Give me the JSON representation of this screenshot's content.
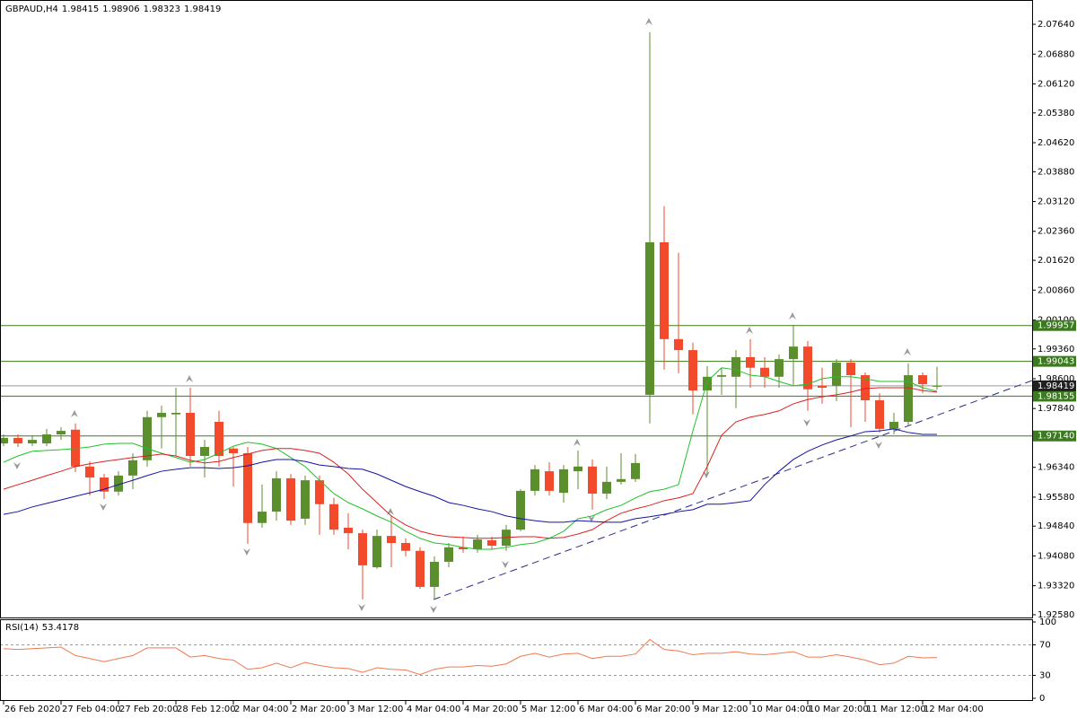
{
  "chart_data": [
    {
      "type": "candlestick",
      "title": "GBPAUD,H4",
      "categories": [
        "26 Feb 2020",
        null,
        null,
        null,
        "27 Feb 04:00",
        null,
        null,
        null,
        "27 Feb 20:00",
        null,
        null,
        null,
        "28 Feb 12:00",
        null,
        null,
        null,
        "2 Mar 04:00",
        null,
        null,
        null,
        "2 Mar 20:00",
        null,
        null,
        null,
        "3 Mar 12:00",
        null,
        null,
        null,
        "4 Mar 04:00",
        null,
        null,
        null,
        "4 Mar 20:00",
        null,
        null,
        null,
        "5 Mar 12:00",
        null,
        null,
        null,
        "6 Mar 04:00",
        null,
        null,
        null,
        "6 Mar 20:00",
        null,
        null,
        null,
        "9 Mar 12:00",
        null,
        null,
        null,
        "10 Mar 04:00",
        null,
        null,
        null,
        "10 Mar 20:00",
        null,
        null,
        null,
        "11 Mar 12:00",
        null,
        null,
        null,
        "12 Mar 04:00",
        null
      ],
      "open": [
        1.9695,
        1.9709,
        1.9695,
        1.9695,
        1.9718,
        1.973,
        1.9636,
        1.9608,
        1.9572,
        1.9613,
        1.9652,
        1.9762,
        1.9769,
        1.9773,
        1.9663,
        1.975,
        1.9682,
        1.967,
        1.9492,
        1.9521,
        1.9606,
        1.9503,
        1.9601,
        1.954,
        1.948,
        1.9466,
        1.9379,
        1.9459,
        1.9441,
        1.9421,
        1.9329,
        1.9393,
        1.943,
        1.9425,
        1.9448,
        1.9434,
        1.9475,
        1.9574,
        1.9624,
        1.9569,
        1.9624,
        1.9636,
        1.9567,
        1.9597,
        1.9604,
        1.9819,
        2.0208,
        1.9961,
        1.9933,
        1.983,
        1.9865,
        1.9865,
        1.9915,
        1.9888,
        1.9865,
        1.991,
        1.9942,
        1.9842,
        1.9842,
        1.9901,
        1.9869,
        1.9805,
        1.9732,
        1.975,
        1.9869,
        1.98415
      ],
      "high": [
        1.9718,
        1.9718,
        1.9716,
        1.9732,
        1.9736,
        1.9746,
        1.9649,
        1.9617,
        1.9624,
        1.967,
        1.9778,
        1.9791,
        1.9837,
        1.9837,
        1.9704,
        1.9778,
        1.9686,
        1.9686,
        1.959,
        1.9624,
        1.9617,
        1.9613,
        1.9613,
        1.9556,
        1.9517,
        1.9475,
        1.9475,
        1.951,
        1.9453,
        1.943,
        1.9407,
        1.9441,
        1.9457,
        1.9462,
        1.9457,
        1.9487,
        1.9578,
        1.964,
        1.9647,
        1.964,
        1.9677,
        1.9654,
        1.9636,
        1.967,
        1.9668,
        2.0744,
        2.03,
        2.0181,
        1.9952,
        1.9892,
        1.9888,
        1.9933,
        1.9961,
        1.9915,
        1.9922,
        1.9997,
        1.9956,
        1.9888,
        1.991,
        1.991,
        1.9876,
        1.9823,
        1.9773,
        1.9899,
        1.9876,
        1.98906
      ],
      "low": [
        1.9688,
        1.9686,
        1.9688,
        1.9688,
        1.9704,
        1.9622,
        1.9562,
        1.9553,
        1.9562,
        1.9578,
        1.9636,
        1.9682,
        1.9663,
        1.9636,
        1.9608,
        1.9636,
        1.9585,
        1.9439,
        1.948,
        1.9498,
        1.9487,
        1.9487,
        1.9462,
        1.9462,
        1.9425,
        1.9297,
        1.9375,
        1.9379,
        1.9407,
        1.9324,
        1.9297,
        1.9379,
        1.9416,
        1.9416,
        1.9425,
        1.9421,
        1.9471,
        1.9562,
        1.9562,
        1.9544,
        1.9578,
        1.9526,
        1.9553,
        1.959,
        1.9597,
        1.9746,
        1.9883,
        1.9874,
        1.9769,
        1.9617,
        1.9819,
        1.9785,
        1.9837,
        1.9837,
        1.9837,
        1.9842,
        1.9778,
        1.9796,
        1.9803,
        1.9736,
        1.975,
        1.9723,
        1.9718,
        1.9741,
        1.9823,
        1.98323
      ],
      "close": [
        1.9709,
        1.9695,
        1.9704,
        1.9718,
        1.9727,
        1.9636,
        1.9608,
        1.9572,
        1.9613,
        1.9652,
        1.9762,
        1.9773,
        1.9773,
        1.9663,
        1.9686,
        1.9663,
        1.967,
        1.9492,
        1.9521,
        1.9606,
        1.9498,
        1.9601,
        1.954,
        1.9475,
        1.9466,
        1.9384,
        1.9459,
        1.9441,
        1.9421,
        1.9329,
        1.9393,
        1.943,
        1.9425,
        1.945,
        1.9434,
        1.9475,
        1.9574,
        1.9629,
        1.9574,
        1.9629,
        1.9636,
        1.9567,
        1.9597,
        1.9604,
        1.9645,
        2.0208,
        1.9961,
        1.9933,
        1.983,
        1.9865,
        1.9869,
        1.9915,
        1.9888,
        1.9865,
        1.991,
        1.9942,
        1.9833,
        1.9837,
        1.9901,
        1.9869,
        1.9805,
        1.9732,
        1.975,
        1.9869,
        1.9846,
        1.98419
      ],
      "up_color": "#5b8f2d",
      "down_color": "#f24a2b",
      "overlays": [
        {
          "color": "#22c02a",
          "values": [
            1.9647,
            1.9663,
            1.9675,
            1.9677,
            1.9679,
            1.9682,
            1.9686,
            1.9693,
            1.9695,
            1.9695,
            1.9682,
            1.967,
            1.9659,
            1.9647,
            1.9654,
            1.967,
            1.9688,
            1.9698,
            1.9693,
            1.9682,
            1.9659,
            1.9636,
            1.9601,
            1.9567,
            1.9544,
            1.9528,
            1.951,
            1.9494,
            1.9471,
            1.9453,
            1.9441,
            1.9437,
            1.943,
            1.9425,
            1.9425,
            1.943,
            1.9437,
            1.9441,
            1.9453,
            1.9471,
            1.9503,
            1.951,
            1.9526,
            1.9537,
            1.9556,
            1.9572,
            1.9578,
            1.959,
            1.9727,
            1.9853,
            1.9888,
            1.9883,
            1.9869,
            1.9865,
            1.9853,
            1.9842,
            1.9846,
            1.986,
            1.9865,
            1.9865,
            1.986,
            1.9853,
            1.9853,
            1.9853,
            1.9837,
            1.9828
          ]
        },
        {
          "color": "#dd2020",
          "values": [
            1.9578,
            1.959,
            1.9601,
            1.9613,
            1.9624,
            1.9636,
            1.9643,
            1.9649,
            1.9654,
            1.9659,
            1.9663,
            1.9668,
            1.9663,
            1.9652,
            1.9645,
            1.9649,
            1.9659,
            1.9668,
            1.9677,
            1.9682,
            1.9682,
            1.9677,
            1.967,
            1.9647,
            1.9617,
            1.9578,
            1.9544,
            1.951,
            1.9487,
            1.9471,
            1.9462,
            1.9457,
            1.9455,
            1.9453,
            1.9453,
            1.9455,
            1.9457,
            1.9457,
            1.9453,
            1.9455,
            1.9464,
            1.9475,
            1.9498,
            1.9517,
            1.9528,
            1.9537,
            1.9549,
            1.9556,
            1.9567,
            1.9636,
            1.9716,
            1.975,
            1.9762,
            1.9769,
            1.9778,
            1.9796,
            1.9807,
            1.9814,
            1.9819,
            1.9826,
            1.9835,
            1.9837,
            1.9837,
            1.9837,
            1.983,
            1.9826
          ]
        },
        {
          "color": "#1414a0",
          "values": [
            1.9514,
            1.9521,
            1.9533,
            1.9542,
            1.9551,
            1.956,
            1.9569,
            1.9578,
            1.959,
            1.9601,
            1.9613,
            1.9624,
            1.9629,
            1.9633,
            1.9633,
            1.9631,
            1.9633,
            1.9638,
            1.9647,
            1.9654,
            1.9654,
            1.9649,
            1.964,
            1.9636,
            1.9631,
            1.9629,
            1.9617,
            1.9601,
            1.9585,
            1.9572,
            1.956,
            1.9544,
            1.9537,
            1.9528,
            1.9521,
            1.951,
            1.9503,
            1.9498,
            1.9494,
            1.9494,
            1.9498,
            1.9496,
            1.9494,
            1.9494,
            1.9503,
            1.9508,
            1.9514,
            1.9521,
            1.9526,
            1.954,
            1.954,
            1.9544,
            1.9549,
            1.959,
            1.9624,
            1.9654,
            1.9675,
            1.9691,
            1.9704,
            1.9714,
            1.9725,
            1.9727,
            1.9732,
            1.9723,
            1.9718,
            1.9718
          ]
        }
      ],
      "levels": [
        1.99957,
        1.99043,
        1.98155,
        {
          "value": 1.9714,
          "label": "1.97140"
        }
      ],
      "level_color": "#3b7a1e",
      "ylim": [
        1.9251,
        2.0826
      ],
      "yticks": [
        {
          "value": 2.0764,
          "label": "2.07640"
        },
        {
          "value": 2.0688,
          "label": "2.06880"
        },
        {
          "value": 2.0612,
          "label": "2.06120"
        },
        {
          "value": 2.0538,
          "label": "2.05380"
        },
        {
          "value": 2.0462,
          "label": "2.04620"
        },
        {
          "value": 2.0388,
          "label": "2.03880"
        },
        {
          "value": 2.0312,
          "label": "2.03120"
        },
        {
          "value": 2.0236,
          "label": "2.02360"
        },
        {
          "value": 2.0162,
          "label": "2.01620"
        },
        {
          "value": 2.0086,
          "label": "2.00860"
        },
        {
          "value": 2.001,
          "label": "2.00100"
        },
        {
          "value": 1.9936,
          "label": "1.99360"
        },
        {
          "value": 1.986,
          "label": "1.98600"
        },
        {
          "value": 1.9784,
          "label": "1.97840"
        },
        {
          "value": 1.9634,
          "label": "1.96340"
        },
        {
          "value": 1.9558,
          "label": "1.95580"
        },
        {
          "value": 1.9484,
          "label": "1.94840"
        },
        {
          "value": 1.9408,
          "label": "1.94080"
        },
        {
          "value": 1.9332,
          "label": "1.93320"
        },
        {
          "value": 1.9258,
          "label": "1.92580"
        }
      ],
      "grid": false
    },
    {
      "type": "line",
      "title": "RSI(14)",
      "color": "#f07a50",
      "values": [
        65,
        64,
        65,
        66,
        67,
        56,
        52,
        48,
        52,
        56,
        66,
        66,
        66,
        54,
        56,
        52,
        50,
        38,
        40,
        46,
        40,
        47,
        43,
        40,
        39,
        34,
        40,
        38,
        37,
        31,
        38,
        41,
        41,
        43,
        42,
        45,
        55,
        59,
        54,
        58,
        59,
        52,
        55,
        55,
        58,
        77,
        64,
        62,
        57,
        59,
        59,
        61,
        58,
        57,
        59,
        61,
        54,
        54,
        57,
        54,
        50,
        44,
        46,
        55,
        53,
        53.4178
      ],
      "ylim": [
        0,
        100
      ],
      "yticks": [
        100,
        70,
        30,
        0
      ],
      "level_lines": [
        70,
        30
      ]
    }
  ]
}
